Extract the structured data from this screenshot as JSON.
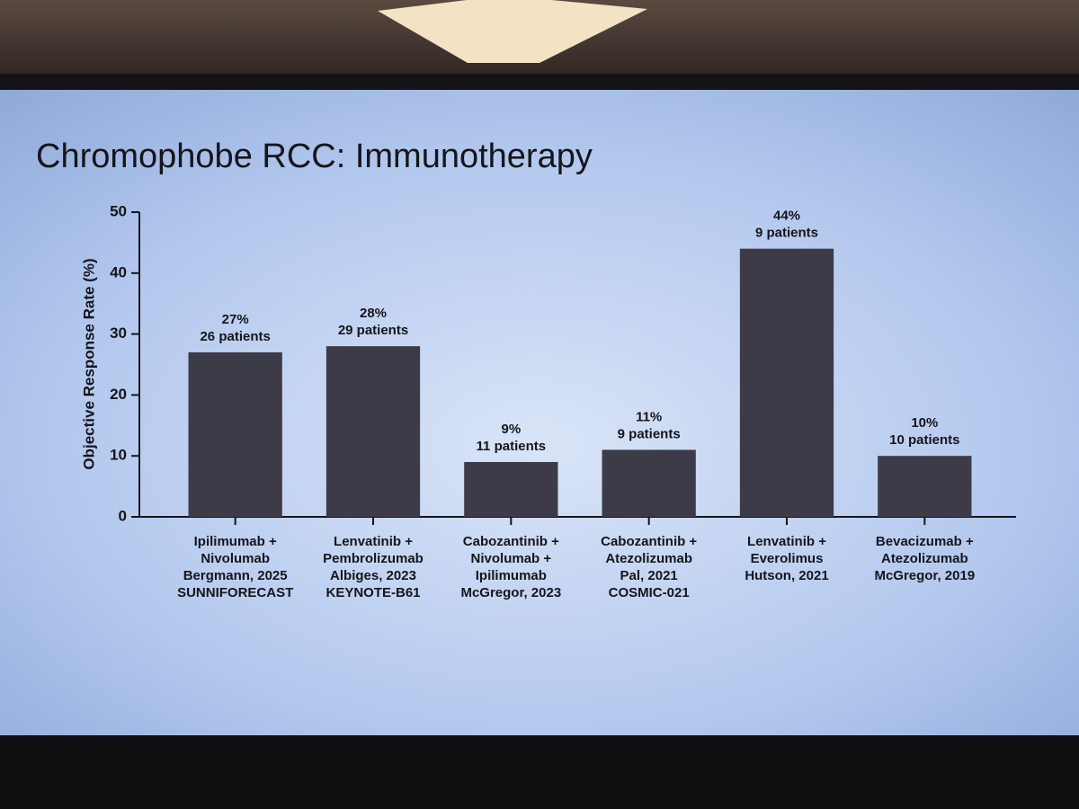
{
  "chart_data": {
    "type": "bar",
    "title": "Chromophobe RCC:  Immunotherapy",
    "y_label": "Objective Response Rate (%)",
    "categories": [
      [
        "Ipilimumab +",
        "Nivolumab",
        "Bergmann, 2025",
        "SUNNIFORECAST"
      ],
      [
        "Lenvatinib +",
        "Pembrolizumab",
        "Albiges, 2023",
        "KEYNOTE-B61"
      ],
      [
        "Cabozantinib +",
        "Nivolumab +",
        "Ipilimumab",
        "McGregor, 2023"
      ],
      [
        "Cabozantinib +",
        "Atezolizumab",
        "Pal, 2021",
        "COSMIC-021"
      ],
      [
        "Lenvatinib +",
        "Everolimus",
        "Hutson, 2021"
      ],
      [
        "Bevacizumab +",
        "Atezolizumab",
        "McGregor, 2019"
      ]
    ],
    "values": [
      27,
      28,
      9,
      11,
      44,
      10
    ],
    "value_labels": [
      "27%",
      "28%",
      "9%",
      "11%",
      "44%",
      "10%"
    ],
    "annotations": [
      "26 patients",
      "29 patients",
      "11 patients",
      "9 patients",
      "9 patients",
      "10 patients"
    ],
    "color": "#3d3b47",
    "ylim": [
      0,
      50
    ],
    "yticks": [
      0,
      10,
      20,
      30,
      40,
      50
    ],
    "grid": false
  }
}
